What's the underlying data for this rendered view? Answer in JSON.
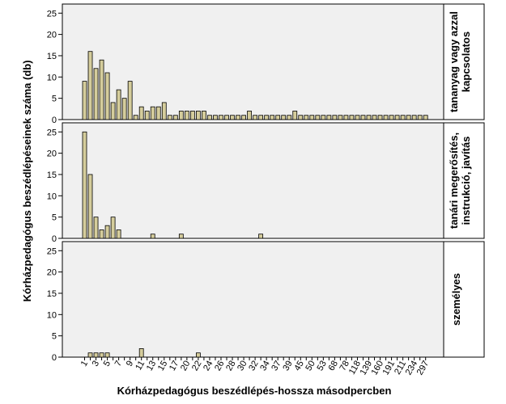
{
  "chart_data": {
    "type": "bar",
    "xlabel": "Kórházpedagógus beszédlépés-hossza másodpercben",
    "ylabel": "Kórházpedagógus beszédlépéseinek száma (db)",
    "ylim": [
      0,
      26
    ],
    "yticks": [
      0,
      5,
      10,
      15,
      20,
      25
    ],
    "grid": false,
    "bar_fill": "#d5cd9c",
    "panel_background": "#f0f0f0",
    "categories": [
      "1",
      "2",
      "3",
      "4",
      "5",
      "6",
      "7",
      "8",
      "9",
      "10",
      "11",
      "12",
      "13",
      "14",
      "15",
      "16",
      "17",
      "19",
      "20",
      "21",
      "22",
      "23",
      "24",
      "25",
      "26",
      "27",
      "28",
      "29",
      "30",
      "31",
      "32",
      "33",
      "34",
      "35",
      "37",
      "38",
      "39",
      "40",
      "45",
      "48",
      "50",
      "52",
      "53",
      "56",
      "68",
      "72",
      "78",
      "95",
      "118",
      "129",
      "139",
      "153",
      "160",
      "170",
      "191",
      "204",
      "211",
      "228",
      "234",
      "277",
      "297"
    ],
    "tick_labels": [
      "1",
      "3",
      "5",
      "7",
      "9",
      "11",
      "13",
      "15",
      "17",
      "20",
      "22",
      "24",
      "26",
      "28",
      "30",
      "32",
      "34",
      "37",
      "39",
      "45",
      "50",
      "53",
      "68",
      "78",
      "118",
      "139",
      "160",
      "191",
      "211",
      "234",
      "297"
    ],
    "series": [
      {
        "name": "tananyag vagy azzal kapcsolatos",
        "values": [
          9,
          16,
          12,
          14,
          11,
          4,
          7,
          5,
          9,
          1,
          3,
          2,
          3,
          3,
          4,
          1,
          1,
          2,
          2,
          2,
          2,
          2,
          1,
          1,
          1,
          1,
          1,
          1,
          1,
          2,
          1,
          1,
          1,
          1,
          1,
          1,
          1,
          2,
          1,
          1,
          1,
          1,
          1,
          1,
          1,
          1,
          1,
          1,
          1,
          1,
          1,
          1,
          1,
          1,
          1,
          1,
          1,
          1,
          1,
          1,
          1
        ]
      },
      {
        "name": "tanári megerősítés, instrukció, javítás",
        "values": [
          25,
          15,
          5,
          2,
          3,
          5,
          2,
          0,
          0,
          0,
          0,
          0,
          1,
          0,
          0,
          0,
          0,
          1,
          0,
          0,
          0,
          0,
          0,
          0,
          0,
          0,
          0,
          0,
          0,
          0,
          0,
          1,
          0,
          0,
          0,
          0,
          0,
          0,
          0,
          0,
          0,
          0,
          0,
          0,
          0,
          0,
          0,
          0,
          0,
          0,
          0,
          0,
          0,
          0,
          0,
          0,
          0,
          0,
          0,
          0,
          0
        ]
      },
      {
        "name": "személyes",
        "values": [
          0,
          1,
          1,
          1,
          1,
          0,
          0,
          0,
          0,
          0,
          2,
          0,
          0,
          0,
          0,
          0,
          0,
          0,
          0,
          0,
          1,
          0,
          0,
          0,
          0,
          0,
          0,
          0,
          0,
          0,
          0,
          0,
          0,
          0,
          0,
          0,
          0,
          0,
          0,
          0,
          0,
          0,
          0,
          0,
          0,
          0,
          0,
          0,
          0,
          0,
          0,
          0,
          0,
          0,
          0,
          0,
          0,
          0,
          0,
          0,
          0
        ]
      }
    ]
  }
}
